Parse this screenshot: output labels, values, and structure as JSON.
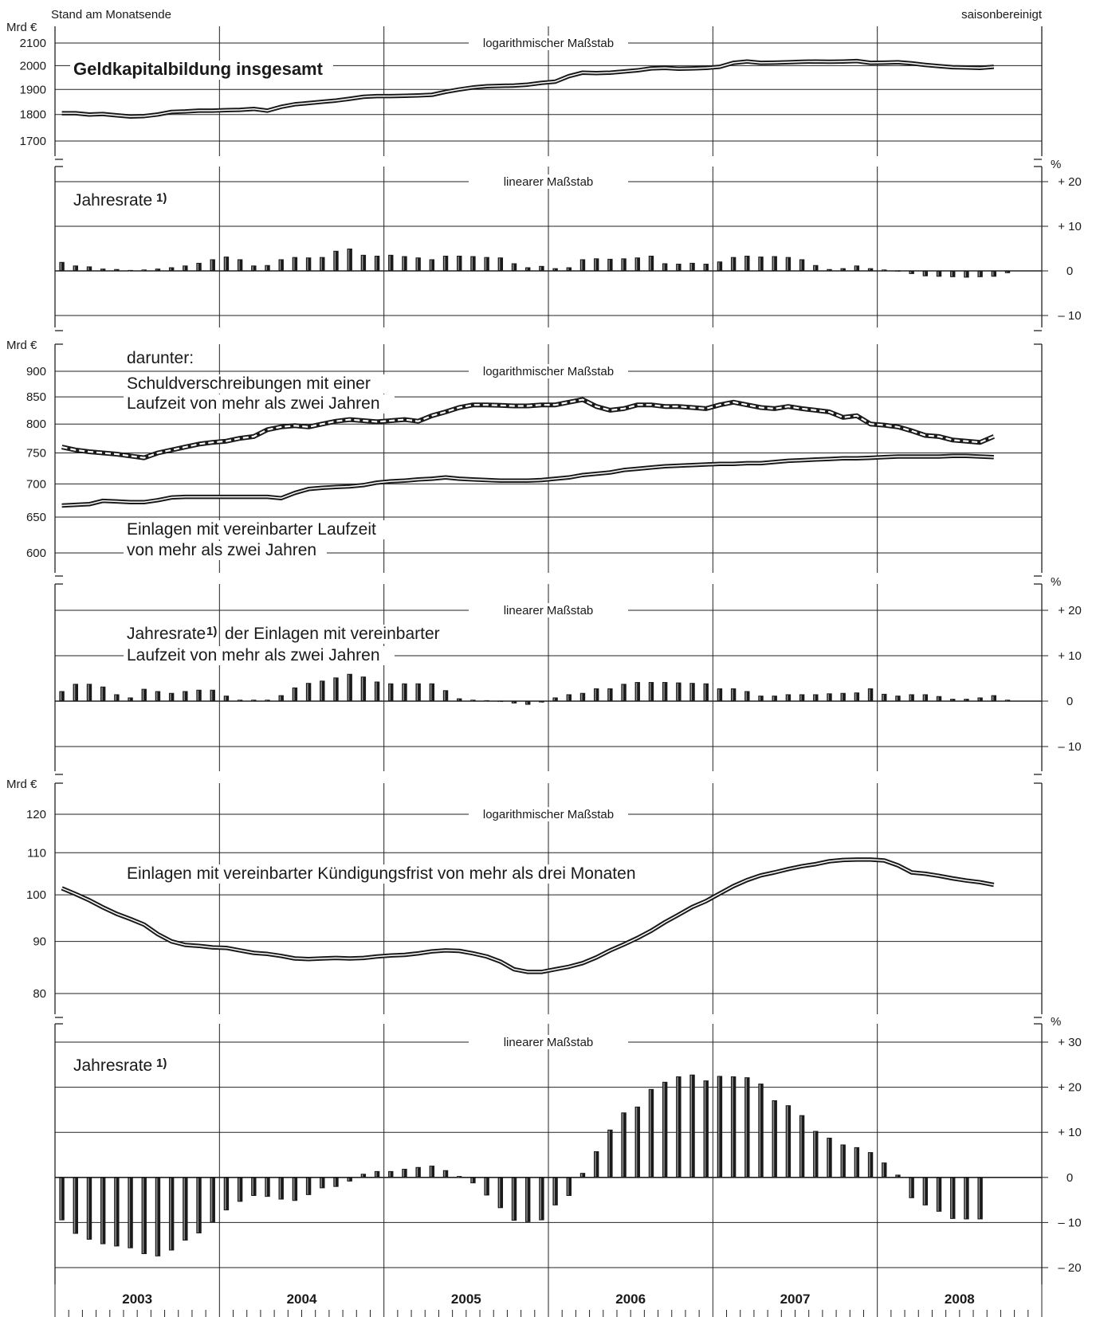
{
  "header": {
    "left": "Stand am Monatsende",
    "right": "saisonbereinigt"
  },
  "x_axis": {
    "years": [
      "2003",
      "2004",
      "2005",
      "2006",
      "2007",
      "2008"
    ]
  },
  "chart_data": [
    {
      "type": "line",
      "title": "Geldkapitalbildung insgesamt",
      "unit": "Mrd €",
      "scale_label": "logarithmischer Maßstab",
      "log_scale": true,
      "yticks": [
        1700,
        1800,
        1900,
        2000,
        2100
      ],
      "ylim": [
        1650,
        2140
      ],
      "series": [
        {
          "values": [
            1805,
            1805,
            1800,
            1802,
            1797,
            1792,
            1794,
            1800,
            1810,
            1812,
            1815,
            1815,
            1817,
            1818,
            1822,
            1815,
            1830,
            1840,
            1845,
            1850,
            1855,
            1862,
            1870,
            1873,
            1873,
            1874,
            1876,
            1878,
            1890,
            1900,
            1908,
            1913,
            1915,
            1916,
            1920,
            1927,
            1932,
            1955,
            1970,
            1968,
            1970,
            1975,
            1980,
            1988,
            1990,
            1987,
            1988,
            1990,
            1995,
            2012,
            2018,
            2012,
            2013,
            2015,
            2017,
            2018,
            2017,
            2018,
            2020,
            2012,
            2013,
            2015,
            2010,
            2003,
            1998,
            1993,
            1992,
            1990,
            1995
          ]
        }
      ]
    },
    {
      "type": "bar",
      "title": "Jahresrate 1)",
      "unit": "%",
      "scale_label": "linearer Maßstab",
      "yticks": [
        -10,
        0,
        10,
        20
      ],
      "ylim": [
        -15,
        25
      ],
      "values": [
        2,
        1.2,
        1,
        0.5,
        0.4,
        0.2,
        0.3,
        0.5,
        0.8,
        1.2,
        1.8,
        2.6,
        3.2,
        2.6,
        1.2,
        1.3,
        2.6,
        3.1,
        3,
        3.1,
        4.5,
        5,
        3.6,
        3.4,
        3.6,
        3.3,
        3,
        2.6,
        3.4,
        3.4,
        3.3,
        3.1,
        3,
        1.7,
        0.8,
        1.1,
        0.6,
        0.8,
        2.6,
        2.8,
        2.7,
        2.8,
        3,
        3.4,
        1.7,
        1.6,
        1.8,
        1.6,
        2.1,
        3.1,
        3.4,
        3.2,
        3.3,
        3.1,
        2.6,
        1.3,
        0.4,
        0.6,
        1.2,
        0.6,
        0.3,
        0.1,
        -0.7,
        -1.2,
        -1.3,
        -1.4,
        -1.5,
        -1.4,
        -1.3,
        -0.5
      ]
    },
    {
      "type": "line",
      "title": "darunter:",
      "unit": "Mrd €",
      "scale_label": "logarithmischer Maßstab",
      "log_scale": true,
      "yticks": [
        600,
        650,
        700,
        750,
        800,
        850,
        900
      ],
      "ylim": [
        560,
        930
      ],
      "series": [
        {
          "name": "Schuldverschreibungen mit einer Laufzeit von mehr als zwei Jahren",
          "style": "dashed",
          "values": [
            760,
            755,
            752,
            750,
            748,
            745,
            742,
            750,
            755,
            760,
            765,
            768,
            770,
            775,
            778,
            790,
            795,
            797,
            795,
            800,
            805,
            808,
            806,
            804,
            806,
            808,
            805,
            815,
            822,
            830,
            835,
            835,
            834,
            833,
            833,
            835,
            835,
            840,
            845,
            832,
            825,
            828,
            835,
            835,
            832,
            832,
            830,
            828,
            835,
            840,
            835,
            830,
            828,
            832,
            828,
            825,
            822,
            812,
            815,
            800,
            798,
            795,
            788,
            780,
            778,
            772,
            770,
            768,
            778
          ]
        },
        {
          "name": "Einlagen mit vereinbarter Laufzeit von mehr als zwei Jahren",
          "style": "solid",
          "values": [
            667,
            668,
            669,
            674,
            673,
            672,
            672,
            675,
            679,
            680,
            680,
            680,
            680,
            680,
            680,
            680,
            678,
            686,
            692,
            694,
            695,
            696,
            698,
            702,
            704,
            705,
            707,
            708,
            710,
            708,
            707,
            706,
            705,
            705,
            705,
            706,
            708,
            710,
            714,
            716,
            718,
            722,
            724,
            726,
            728,
            729,
            730,
            731,
            732,
            732,
            733,
            733,
            735,
            737,
            738,
            739,
            740,
            741,
            741,
            742,
            743,
            744,
            744,
            744,
            744,
            745,
            745,
            744,
            743
          ]
        }
      ]
    },
    {
      "type": "bar",
      "title": "Jahresrate 1) der Einlagen mit vereinbarter Laufzeit von mehr als zwei Jahren",
      "unit": "%",
      "scale_label": "linearer Maßstab",
      "yticks": [
        -10,
        0,
        10,
        20
      ],
      "ylim": [
        -15,
        25
      ],
      "values": [
        2.2,
        3.8,
        3.8,
        3.2,
        1.5,
        0.8,
        2.7,
        2.2,
        1.8,
        2.2,
        2.5,
        2.5,
        1.2,
        0.3,
        0.3,
        0.3,
        1.3,
        3,
        4,
        4.5,
        5.2,
        6,
        5.4,
        4.3,
        3.9,
        3.9,
        3.9,
        3.9,
        2.4,
        0.6,
        0.3,
        0.2,
        0.1,
        -0.5,
        -0.8,
        -0.3,
        0.8,
        1.5,
        1.8,
        2.8,
        2.8,
        3.8,
        4.2,
        4.2,
        4.2,
        4.1,
        4.0,
        3.9,
        2.8,
        2.8,
        2.2,
        1.2,
        1.2,
        1.5,
        1.5,
        1.5,
        1.7,
        1.8,
        1.9,
        2.8,
        1.6,
        1.2,
        1.5,
        1.5,
        1.1,
        0.5,
        0.5,
        0.8,
        1.3,
        0.3
      ]
    },
    {
      "type": "line",
      "title": "Einlagen mit vereinbarter Kündigungsfrist von mehr als drei Monaten",
      "unit": "Mrd €",
      "scale_label": "logarithmischer Maßstab",
      "log_scale": true,
      "yticks": [
        80,
        90,
        100,
        110,
        120
      ],
      "ylim": [
        76,
        125
      ],
      "series": [
        {
          "values": [
            101.5,
            100.2,
            98.8,
            97.2,
            95.8,
            94.7,
            93.5,
            91.5,
            90,
            89.3,
            89.1,
            88.8,
            88.7,
            88.2,
            87.7,
            87.5,
            87.1,
            86.6,
            86.5,
            86.6,
            86.7,
            86.6,
            86.7,
            87,
            87.2,
            87.3,
            87.6,
            88,
            88.2,
            88.1,
            87.6,
            87,
            86,
            84.5,
            84,
            84,
            84.5,
            85,
            85.7,
            86.8,
            88.2,
            89.4,
            90.7,
            92.2,
            94,
            95.6,
            97.3,
            98.6,
            100.3,
            102,
            103.4,
            104.5,
            105.2,
            106,
            106.7,
            107.2,
            107.9,
            108.2,
            108.3,
            108.3,
            108.1,
            106.9,
            105.2,
            104.9,
            104.4,
            103.8,
            103.3,
            102.9,
            102.3
          ]
        }
      ]
    },
    {
      "type": "bar",
      "title": "Jahresrate 1)",
      "unit": "%",
      "scale_label": "linearer Maßstab",
      "yticks": [
        -20,
        -10,
        0,
        10,
        20,
        30
      ],
      "ylim": [
        -25,
        35
      ],
      "values": [
        -9.5,
        -12.5,
        -13.8,
        -14.8,
        -15.3,
        -15.7,
        -17,
        -17.5,
        -16.2,
        -14,
        -12.4,
        -10,
        -7.3,
        -5.4,
        -4.1,
        -4.3,
        -4.9,
        -5.2,
        -3.9,
        -2.4,
        -2.1,
        -0.9,
        0.8,
        1.4,
        1.4,
        1.9,
        2.3,
        2.6,
        1.6,
        0.3,
        -1.3,
        -4,
        -6.8,
        -9.6,
        -9.9,
        -9.5,
        -6.2,
        -4.1,
        1,
        5.8,
        10.6,
        14.4,
        15.7,
        19.6,
        21.2,
        22.4,
        22.8,
        21.5,
        22.5,
        22.4,
        22.2,
        20.8,
        17.1,
        16,
        13.8,
        10.3,
        8.8,
        7.3,
        6.7,
        5.6,
        3.3,
        0.6,
        -4.6,
        -6.2,
        -7.6,
        -9.2,
        -9.3,
        -9.3
      ]
    }
  ],
  "annotations": {
    "p1_title": "Geldkapitalbildung insgesamt",
    "p2_label": "Jahresrate",
    "p3_darunter": "darunter:",
    "p3_sv_line1": "Schuldverschreibungen mit einer",
    "p3_sv_line2": "Laufzeit von mehr als zwei Jahren",
    "p3_el_line1": "Einlagen mit vereinbarter Laufzeit",
    "p3_el_line2": "von mehr als zwei Jahren",
    "p4_line1_a": "Jahresrate",
    "p4_line1_b": "der Einlagen mit vereinbarter",
    "p4_line2": "Laufzeit von mehr als zwei Jahren",
    "p5_title": "Einlagen mit vereinbarter Kündigungsfrist von mehr als drei Monaten",
    "p6_label": "Jahresrate",
    "footnote_mark": "1)"
  }
}
